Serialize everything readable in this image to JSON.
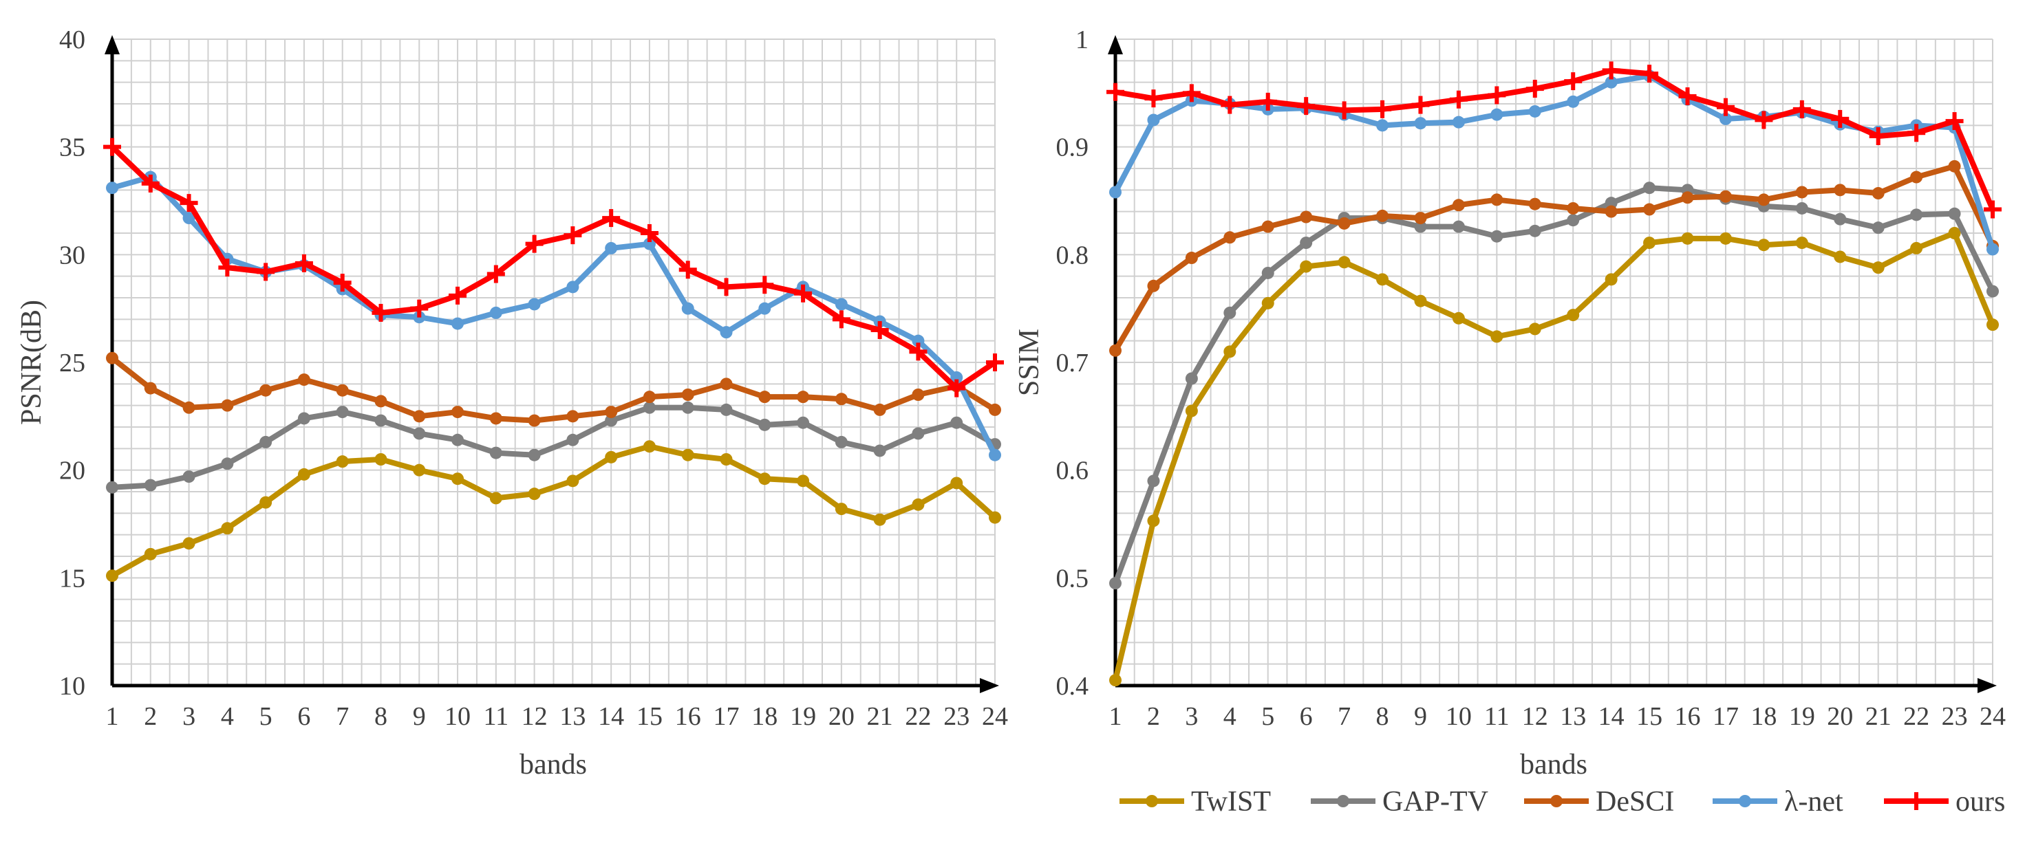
{
  "chart_data": [
    {
      "type": "line",
      "id": "psnr",
      "title": "",
      "xlabel": "bands",
      "ylabel": "PSNR(dB)",
      "ylim": [
        10,
        40
      ],
      "yticks": [
        10,
        15,
        20,
        25,
        30,
        35,
        40
      ],
      "categories": [
        "1",
        "2",
        "3",
        "4",
        "5",
        "6",
        "7",
        "8",
        "9",
        "10",
        "11",
        "12",
        "13",
        "14",
        "15",
        "16",
        "17",
        "18",
        "19",
        "20",
        "21",
        "22",
        "23",
        "24"
      ],
      "series": [
        {
          "name": "TwIST",
          "values": [
            15.1,
            16.1,
            16.6,
            17.3,
            18.5,
            19.8,
            20.4,
            20.5,
            20.0,
            19.6,
            18.7,
            18.9,
            19.5,
            20.6,
            21.1,
            20.7,
            20.5,
            19.6,
            19.5,
            18.2,
            17.7,
            18.4,
            19.4,
            17.8
          ]
        },
        {
          "name": "GAP-TV",
          "values": [
            19.2,
            19.3,
            19.7,
            20.3,
            21.3,
            22.4,
            22.7,
            22.3,
            21.7,
            21.4,
            20.8,
            20.7,
            21.4,
            22.3,
            22.9,
            22.9,
            22.8,
            22.1,
            22.2,
            21.3,
            20.9,
            21.7,
            22.2,
            21.2
          ]
        },
        {
          "name": "DeSCI",
          "values": [
            25.2,
            23.8,
            22.9,
            23.0,
            23.7,
            24.2,
            23.7,
            23.2,
            22.5,
            22.7,
            22.4,
            22.3,
            22.5,
            22.7,
            23.4,
            23.5,
            24.0,
            23.4,
            23.4,
            23.3,
            22.8,
            23.5,
            23.9,
            22.8
          ]
        },
        {
          "name": "λ-net",
          "values": [
            33.1,
            33.6,
            31.7,
            29.8,
            29.2,
            29.5,
            28.4,
            27.2,
            27.1,
            26.8,
            27.3,
            27.7,
            28.5,
            30.3,
            30.5,
            27.5,
            26.4,
            27.5,
            28.5,
            27.7,
            26.9,
            26.0,
            24.3,
            20.7
          ]
        },
        {
          "name": "ours",
          "values": [
            35.0,
            33.3,
            32.4,
            29.4,
            29.2,
            29.6,
            28.7,
            27.3,
            27.5,
            28.1,
            29.1,
            30.5,
            30.9,
            31.7,
            31.0,
            29.3,
            28.5,
            28.6,
            28.2,
            27.0,
            26.5,
            25.5,
            23.8,
            25.0
          ]
        }
      ]
    },
    {
      "type": "line",
      "id": "ssim",
      "title": "",
      "xlabel": "bands",
      "ylabel": "SSIM",
      "ylim": [
        0.4,
        1
      ],
      "yticks": [
        "0.4",
        "0.5",
        "0.6",
        "0.7",
        "0.8",
        "0.9",
        "1"
      ],
      "categories": [
        "1",
        "2",
        "3",
        "4",
        "5",
        "6",
        "7",
        "8",
        "9",
        "10",
        "11",
        "12",
        "13",
        "14",
        "15",
        "16",
        "17",
        "18",
        "19",
        "20",
        "21",
        "22",
        "23",
        "24"
      ],
      "series": [
        {
          "name": "TwIST",
          "values": [
            0.405,
            0.553,
            0.655,
            0.71,
            0.755,
            0.789,
            0.793,
            0.777,
            0.757,
            0.741,
            0.724,
            0.731,
            0.744,
            0.777,
            0.811,
            0.815,
            0.815,
            0.809,
            0.811,
            0.798,
            0.788,
            0.806,
            0.82,
            0.735
          ]
        },
        {
          "name": "GAP-TV",
          "values": [
            0.495,
            0.59,
            0.685,
            0.746,
            0.783,
            0.811,
            0.834,
            0.834,
            0.826,
            0.826,
            0.817,
            0.822,
            0.832,
            0.848,
            0.862,
            0.86,
            0.852,
            0.845,
            0.843,
            0.833,
            0.825,
            0.837,
            0.838,
            0.766
          ]
        },
        {
          "name": "DeSCI",
          "values": [
            0.711,
            0.771,
            0.797,
            0.816,
            0.826,
            0.835,
            0.829,
            0.836,
            0.834,
            0.846,
            0.851,
            0.847,
            0.843,
            0.84,
            0.842,
            0.853,
            0.854,
            0.851,
            0.858,
            0.86,
            0.857,
            0.872,
            0.882,
            0.808
          ]
        },
        {
          "name": "λ-net",
          "values": [
            0.858,
            0.925,
            0.943,
            0.94,
            0.935,
            0.936,
            0.93,
            0.92,
            0.922,
            0.923,
            0.93,
            0.933,
            0.942,
            0.96,
            0.966,
            0.944,
            0.926,
            0.928,
            0.932,
            0.921,
            0.914,
            0.92,
            0.918,
            0.805
          ]
        },
        {
          "name": "ours",
          "values": [
            0.951,
            0.945,
            0.95,
            0.939,
            0.942,
            0.938,
            0.934,
            0.935,
            0.939,
            0.944,
            0.948,
            0.954,
            0.961,
            0.971,
            0.968,
            0.947,
            0.937,
            0.925,
            0.935,
            0.926,
            0.91,
            0.913,
            0.924,
            0.842
          ]
        }
      ]
    }
  ],
  "legend": {
    "placement": "bottom-right",
    "items": [
      {
        "name": "TwIST",
        "color": "#bf9000",
        "marker": "circle"
      },
      {
        "name": "GAP-TV",
        "color": "#7f7f7f",
        "marker": "circle"
      },
      {
        "name": "DeSCI",
        "color": "#c55a11",
        "marker": "circle"
      },
      {
        "name": "λ-net",
        "color": "#5b9bd5",
        "marker": "circle"
      },
      {
        "name": "ours",
        "color": "#ff0000",
        "marker": "cross"
      }
    ]
  }
}
